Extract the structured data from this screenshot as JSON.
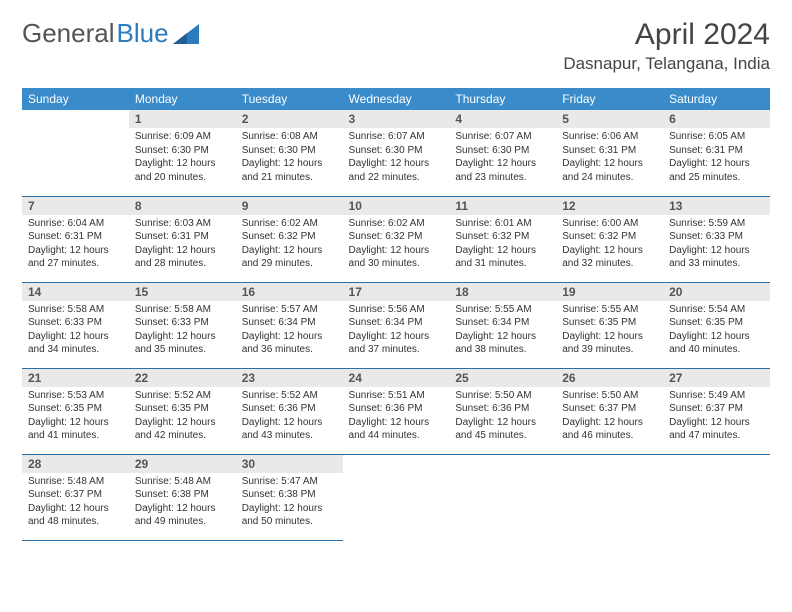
{
  "brand": {
    "part1": "General",
    "part2": "Blue"
  },
  "title": "April 2024",
  "location": "Dasnapur, Telangana, India",
  "colors": {
    "header_bg": "#3a8bc9",
    "header_text": "#ffffff",
    "daynum_bg": "#e9e9e9",
    "row_divider": "#2b6fa8",
    "brand_blue": "#2b7bbf",
    "body_text": "#333333"
  },
  "weekdays": [
    "Sunday",
    "Monday",
    "Tuesday",
    "Wednesday",
    "Thursday",
    "Friday",
    "Saturday"
  ],
  "first_weekday_index": 1,
  "days": [
    {
      "n": 1,
      "sr": "6:09 AM",
      "ss": "6:30 PM",
      "dl": "12 hours and 20 minutes."
    },
    {
      "n": 2,
      "sr": "6:08 AM",
      "ss": "6:30 PM",
      "dl": "12 hours and 21 minutes."
    },
    {
      "n": 3,
      "sr": "6:07 AM",
      "ss": "6:30 PM",
      "dl": "12 hours and 22 minutes."
    },
    {
      "n": 4,
      "sr": "6:07 AM",
      "ss": "6:30 PM",
      "dl": "12 hours and 23 minutes."
    },
    {
      "n": 5,
      "sr": "6:06 AM",
      "ss": "6:31 PM",
      "dl": "12 hours and 24 minutes."
    },
    {
      "n": 6,
      "sr": "6:05 AM",
      "ss": "6:31 PM",
      "dl": "12 hours and 25 minutes."
    },
    {
      "n": 7,
      "sr": "6:04 AM",
      "ss": "6:31 PM",
      "dl": "12 hours and 27 minutes."
    },
    {
      "n": 8,
      "sr": "6:03 AM",
      "ss": "6:31 PM",
      "dl": "12 hours and 28 minutes."
    },
    {
      "n": 9,
      "sr": "6:02 AM",
      "ss": "6:32 PM",
      "dl": "12 hours and 29 minutes."
    },
    {
      "n": 10,
      "sr": "6:02 AM",
      "ss": "6:32 PM",
      "dl": "12 hours and 30 minutes."
    },
    {
      "n": 11,
      "sr": "6:01 AM",
      "ss": "6:32 PM",
      "dl": "12 hours and 31 minutes."
    },
    {
      "n": 12,
      "sr": "6:00 AM",
      "ss": "6:32 PM",
      "dl": "12 hours and 32 minutes."
    },
    {
      "n": 13,
      "sr": "5:59 AM",
      "ss": "6:33 PM",
      "dl": "12 hours and 33 minutes."
    },
    {
      "n": 14,
      "sr": "5:58 AM",
      "ss": "6:33 PM",
      "dl": "12 hours and 34 minutes."
    },
    {
      "n": 15,
      "sr": "5:58 AM",
      "ss": "6:33 PM",
      "dl": "12 hours and 35 minutes."
    },
    {
      "n": 16,
      "sr": "5:57 AM",
      "ss": "6:34 PM",
      "dl": "12 hours and 36 minutes."
    },
    {
      "n": 17,
      "sr": "5:56 AM",
      "ss": "6:34 PM",
      "dl": "12 hours and 37 minutes."
    },
    {
      "n": 18,
      "sr": "5:55 AM",
      "ss": "6:34 PM",
      "dl": "12 hours and 38 minutes."
    },
    {
      "n": 19,
      "sr": "5:55 AM",
      "ss": "6:35 PM",
      "dl": "12 hours and 39 minutes."
    },
    {
      "n": 20,
      "sr": "5:54 AM",
      "ss": "6:35 PM",
      "dl": "12 hours and 40 minutes."
    },
    {
      "n": 21,
      "sr": "5:53 AM",
      "ss": "6:35 PM",
      "dl": "12 hours and 41 minutes."
    },
    {
      "n": 22,
      "sr": "5:52 AM",
      "ss": "6:35 PM",
      "dl": "12 hours and 42 minutes."
    },
    {
      "n": 23,
      "sr": "5:52 AM",
      "ss": "6:36 PM",
      "dl": "12 hours and 43 minutes."
    },
    {
      "n": 24,
      "sr": "5:51 AM",
      "ss": "6:36 PM",
      "dl": "12 hours and 44 minutes."
    },
    {
      "n": 25,
      "sr": "5:50 AM",
      "ss": "6:36 PM",
      "dl": "12 hours and 45 minutes."
    },
    {
      "n": 26,
      "sr": "5:50 AM",
      "ss": "6:37 PM",
      "dl": "12 hours and 46 minutes."
    },
    {
      "n": 27,
      "sr": "5:49 AM",
      "ss": "6:37 PM",
      "dl": "12 hours and 47 minutes."
    },
    {
      "n": 28,
      "sr": "5:48 AM",
      "ss": "6:37 PM",
      "dl": "12 hours and 48 minutes."
    },
    {
      "n": 29,
      "sr": "5:48 AM",
      "ss": "6:38 PM",
      "dl": "12 hours and 49 minutes."
    },
    {
      "n": 30,
      "sr": "5:47 AM",
      "ss": "6:38 PM",
      "dl": "12 hours and 50 minutes."
    }
  ],
  "labels": {
    "sunrise": "Sunrise:",
    "sunset": "Sunset:",
    "daylight": "Daylight:"
  }
}
